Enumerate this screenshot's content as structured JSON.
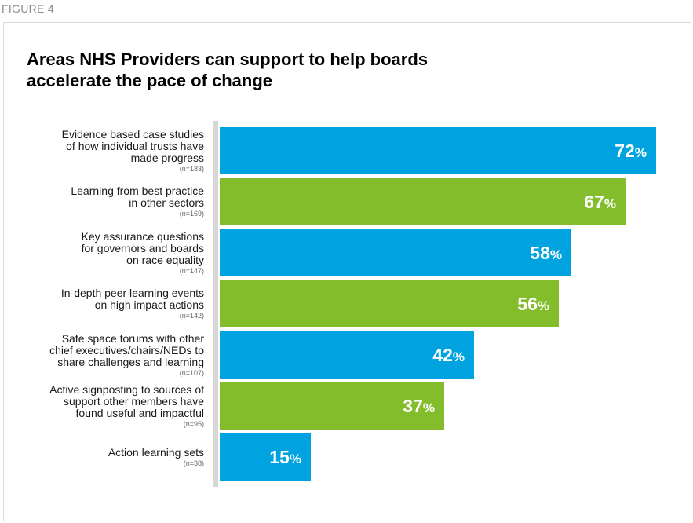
{
  "figure_label": "FIGURE 4",
  "chart_data": {
    "type": "bar",
    "orientation": "horizontal",
    "title": "Areas NHS Providers can support to help boards accelerate the pace of change",
    "xlim": [
      0,
      75
    ],
    "unit": "%",
    "categories": [
      {
        "label_lines": [
          "Evidence based case studies",
          "of how individual trusts have",
          "made progress"
        ],
        "n": "(n=183)",
        "value": 72,
        "color": "#00a3e0"
      },
      {
        "label_lines": [
          "Learning from best practice",
          "in other sectors"
        ],
        "n": "(n=169)",
        "value": 67,
        "color": "#84bd2b"
      },
      {
        "label_lines": [
          "Key assurance questions",
          "for governors and boards",
          "on race equality"
        ],
        "n": "(n=147)",
        "value": 58,
        "color": "#00a3e0"
      },
      {
        "label_lines": [
          "In-depth peer learning events",
          "on high impact actions"
        ],
        "n": "(n=142)",
        "value": 56,
        "color": "#84bd2b"
      },
      {
        "label_lines": [
          "Safe space forums with other",
          "chief executives/chairs/NEDs to",
          "share challenges and learning"
        ],
        "n": "(n=107)",
        "value": 42,
        "color": "#00a3e0"
      },
      {
        "label_lines": [
          "Active signposting to sources of",
          "support other members have",
          "found useful and impactful"
        ],
        "n": "(n=95)",
        "value": 37,
        "color": "#84bd2b"
      },
      {
        "label_lines": [
          "Action learning sets"
        ],
        "n": "(n=38)",
        "value": 15,
        "color": "#00a3e0"
      }
    ]
  }
}
